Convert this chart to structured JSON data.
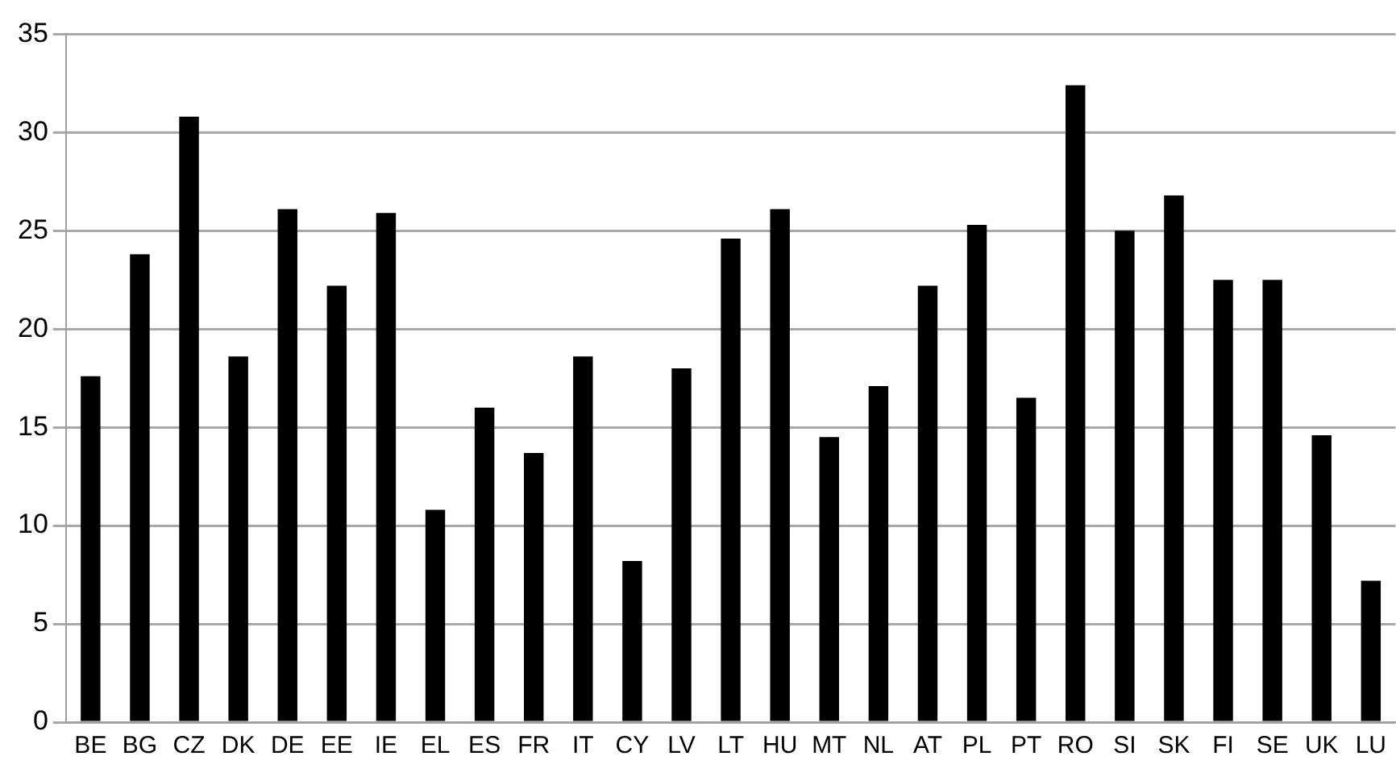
{
  "chart_data": {
    "type": "bar",
    "categories": [
      "BE",
      "BG",
      "CZ",
      "DK",
      "DE",
      "EE",
      "IE",
      "EL",
      "ES",
      "FR",
      "IT",
      "CY",
      "LV",
      "LT",
      "HU",
      "MT",
      "NL",
      "AT",
      "PL",
      "PT",
      "RO",
      "SI",
      "SK",
      "FI",
      "SE",
      "UK",
      "LU"
    ],
    "values": [
      17.6,
      23.8,
      30.8,
      18.6,
      26.1,
      22.2,
      25.9,
      10.8,
      16.0,
      13.7,
      18.6,
      8.2,
      18.0,
      24.6,
      26.1,
      14.5,
      17.1,
      22.2,
      25.3,
      16.5,
      32.4,
      25.0,
      26.8,
      22.5,
      22.5,
      14.6,
      7.2
    ],
    "color": "#000000",
    "ylim": [
      0,
      35
    ],
    "yticks": [
      0,
      5,
      10,
      15,
      20,
      25,
      30,
      35
    ],
    "grid": "y",
    "legend": false
  }
}
